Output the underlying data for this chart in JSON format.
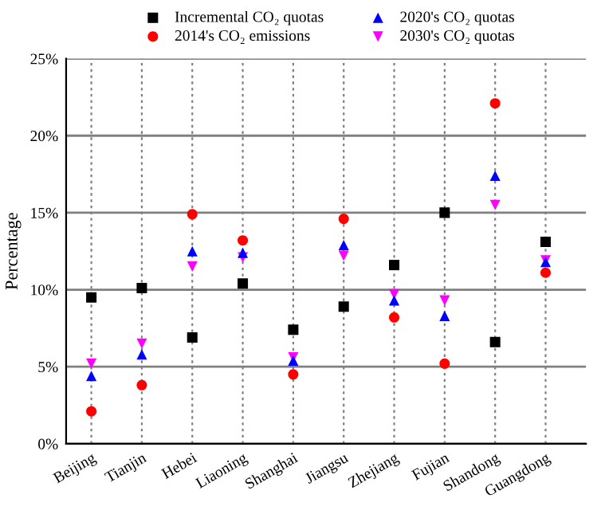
{
  "chart_data": {
    "type": "scatter",
    "ylabel": "Percentage",
    "categories": [
      "Beijing",
      "Tianjin",
      "Hebei",
      "Liaoning",
      "Shanghai",
      "Jiangsu",
      "Zhejiang",
      "Fujian",
      "Shandong",
      "Guangdong"
    ],
    "series": [
      {
        "name": "Incremental CO₂ quotas",
        "color": "#000000",
        "marker": "square",
        "values": [
          9.5,
          10.1,
          6.9,
          10.4,
          7.4,
          8.9,
          11.6,
          15.0,
          6.6,
          13.1
        ]
      },
      {
        "name": "2014's CO₂ emissions",
        "color": "#ff0000",
        "marker": "circle",
        "values": [
          2.1,
          3.8,
          14.9,
          13.2,
          4.5,
          14.6,
          8.2,
          5.2,
          22.1,
          11.1
        ]
      },
      {
        "name": "2020's CO₂ quotas",
        "color": "#0000ff",
        "marker": "triangle",
        "values": [
          4.4,
          5.8,
          12.5,
          12.4,
          5.4,
          12.9,
          9.3,
          8.3,
          17.4,
          11.8
        ]
      },
      {
        "name": "2030's CO₂ quotas",
        "color": "#ff00ff",
        "marker": "triangle_down",
        "values": [
          5.2,
          6.5,
          11.5,
          12.1,
          5.6,
          12.2,
          9.7,
          9.3,
          15.5,
          11.9
        ]
      }
    ],
    "ylim": [
      0,
      25
    ],
    "yticks": [
      {
        "value": 0,
        "label": "0%"
      },
      {
        "value": 5,
        "label": "5%"
      },
      {
        "value": 10,
        "label": "10%"
      },
      {
        "value": 15,
        "label": "15%"
      },
      {
        "value": 20,
        "label": "20%"
      },
      {
        "value": 25,
        "label": "25%"
      }
    ],
    "grid": true,
    "legend": "top"
  }
}
